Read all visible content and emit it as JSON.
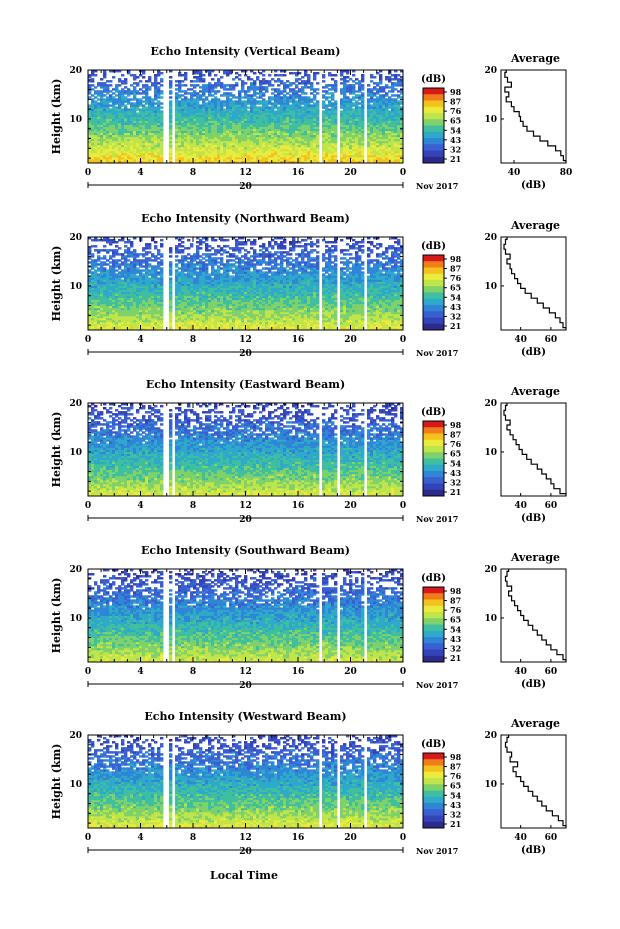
{
  "figure": {
    "xlabel": "Local Time",
    "ylabel": "Height (km)",
    "month_label": "Nov 2017",
    "date_tick": "20",
    "colorbar_unit": "(dB)",
    "colorbar_ticks": [
      "98",
      "87",
      "76",
      "65",
      "54",
      "43",
      "32",
      "21"
    ],
    "colorbar_colors": [
      "#d7191c",
      "#f07c1a",
      "#f4c21d",
      "#eaeb3d",
      "#bfe54b",
      "#7fd16b",
      "#3fbf9f",
      "#2fa9c9",
      "#2f86d6",
      "#3a5fd0",
      "#3344b8",
      "#2d2a8c"
    ]
  },
  "chart_data": [
    {
      "type": "heatmap",
      "title": "Echo Intensity (Vertical Beam)",
      "xlabel": "",
      "ylabel": "Height (km)",
      "x_ticks": [
        "0",
        "4",
        "8",
        "12",
        "16",
        "20",
        "0"
      ],
      "y_ticks": [
        "20",
        "10"
      ],
      "xlim": [
        0,
        24
      ],
      "ylim": [
        1,
        20
      ],
      "gaps_local_time": [
        [
          5.8,
          6.1
        ],
        [
          6.4,
          6.7
        ],
        [
          17.7,
          17.9
        ],
        [
          18.9,
          19.1
        ],
        [
          21.0,
          21.2
        ]
      ],
      "surface_db": 85,
      "top_db": 30,
      "average_profile": {
        "title": "Average",
        "xlabel": "(dB)",
        "x_ticks": [
          "40",
          "80"
        ],
        "y_ticks": [
          "20",
          "10"
        ],
        "xlim": [
          30,
          80
        ],
        "ylim": [
          1,
          20
        ],
        "profile": [
          [
            80,
            1
          ],
          [
            78,
            2
          ],
          [
            76,
            3
          ],
          [
            72,
            4
          ],
          [
            66,
            5
          ],
          [
            60,
            6
          ],
          [
            55,
            7
          ],
          [
            50,
            8
          ],
          [
            47,
            9
          ],
          [
            45,
            10
          ],
          [
            44,
            11
          ],
          [
            40,
            12
          ],
          [
            38,
            13
          ],
          [
            34,
            14
          ],
          [
            36,
            15
          ],
          [
            33,
            16
          ],
          [
            38,
            17
          ],
          [
            35,
            18
          ],
          [
            33,
            19
          ],
          [
            34,
            20
          ]
        ]
      }
    },
    {
      "type": "heatmap",
      "title": "Echo Intensity (Northward Beam)",
      "xlabel": "",
      "ylabel": "Height (km)",
      "x_ticks": [
        "0",
        "4",
        "8",
        "12",
        "16",
        "20",
        "0"
      ],
      "y_ticks": [
        "20",
        "10"
      ],
      "xlim": [
        0,
        24
      ],
      "ylim": [
        1,
        20
      ],
      "gaps_local_time": [
        [
          5.8,
          6.1
        ],
        [
          6.4,
          6.7
        ],
        [
          17.7,
          17.9
        ],
        [
          18.9,
          19.1
        ],
        [
          21.0,
          21.2
        ]
      ],
      "surface_db": 78,
      "top_db": 28,
      "average_profile": {
        "title": "Average",
        "xlabel": "(dB)",
        "x_ticks": [
          "40",
          "60"
        ],
        "y_ticks": [
          "20",
          "10"
        ],
        "xlim": [
          27,
          70
        ],
        "ylim": [
          1,
          20
        ],
        "profile": [
          [
            70,
            1
          ],
          [
            68,
            2
          ],
          [
            66,
            3
          ],
          [
            63,
            4
          ],
          [
            59,
            5
          ],
          [
            55,
            6
          ],
          [
            51,
            7
          ],
          [
            47,
            8
          ],
          [
            43,
            9
          ],
          [
            40,
            10
          ],
          [
            38,
            11
          ],
          [
            36,
            12
          ],
          [
            34,
            13
          ],
          [
            33,
            14
          ],
          [
            31,
            15
          ],
          [
            33,
            16
          ],
          [
            30,
            17
          ],
          [
            29,
            18
          ],
          [
            30,
            19
          ],
          [
            31,
            20
          ]
        ]
      }
    },
    {
      "type": "heatmap",
      "title": "Echo Intensity (Eastward Beam)",
      "xlabel": "",
      "ylabel": "Height (km)",
      "x_ticks": [
        "0",
        "4",
        "8",
        "12",
        "16",
        "20",
        "0"
      ],
      "y_ticks": [
        "20",
        "10"
      ],
      "xlim": [
        0,
        24
      ],
      "ylim": [
        1,
        20
      ],
      "gaps_local_time": [
        [
          5.8,
          6.1
        ],
        [
          6.4,
          6.7
        ],
        [
          17.7,
          17.9
        ],
        [
          18.9,
          19.1
        ],
        [
          21.0,
          21.2
        ]
      ],
      "surface_db": 76,
      "top_db": 27,
      "average_profile": {
        "title": "Average",
        "xlabel": "(dB)",
        "x_ticks": [
          "40",
          "60"
        ],
        "y_ticks": [
          "20",
          "10"
        ],
        "xlim": [
          27,
          70
        ],
        "ylim": [
          1,
          20
        ],
        "profile": [
          [
            70,
            1
          ],
          [
            66,
            2
          ],
          [
            62,
            3
          ],
          [
            60,
            4
          ],
          [
            57,
            5
          ],
          [
            54,
            6
          ],
          [
            51,
            7
          ],
          [
            47,
            8
          ],
          [
            44,
            9
          ],
          [
            41,
            10
          ],
          [
            39,
            11
          ],
          [
            37,
            12
          ],
          [
            35,
            13
          ],
          [
            33,
            14
          ],
          [
            31,
            15
          ],
          [
            33,
            16
          ],
          [
            30,
            17
          ],
          [
            29,
            18
          ],
          [
            30,
            19
          ],
          [
            31,
            20
          ]
        ]
      }
    },
    {
      "type": "heatmap",
      "title": "Echo Intensity (Southward Beam)",
      "xlabel": "",
      "ylabel": "Height (km)",
      "x_ticks": [
        "0",
        "4",
        "8",
        "12",
        "16",
        "20",
        "0"
      ],
      "y_ticks": [
        "20",
        "10"
      ],
      "xlim": [
        0,
        24
      ],
      "ylim": [
        1,
        20
      ],
      "gaps_local_time": [
        [
          5.8,
          6.1
        ],
        [
          6.4,
          6.7
        ],
        [
          17.7,
          17.9
        ],
        [
          18.9,
          19.1
        ],
        [
          21.0,
          21.2
        ]
      ],
      "surface_db": 75,
      "top_db": 27,
      "average_profile": {
        "title": "Average",
        "xlabel": "(dB)",
        "x_ticks": [
          "40",
          "60"
        ],
        "y_ticks": [
          "20",
          "10"
        ],
        "xlim": [
          27,
          70
        ],
        "ylim": [
          1,
          20
        ],
        "profile": [
          [
            70,
            1
          ],
          [
            68,
            2
          ],
          [
            64,
            3
          ],
          [
            60,
            4
          ],
          [
            57,
            5
          ],
          [
            54,
            6
          ],
          [
            51,
            7
          ],
          [
            48,
            8
          ],
          [
            45,
            9
          ],
          [
            42,
            10
          ],
          [
            40,
            11
          ],
          [
            38,
            12
          ],
          [
            36,
            13
          ],
          [
            34,
            14
          ],
          [
            32,
            15
          ],
          [
            34,
            16
          ],
          [
            31,
            17
          ],
          [
            30,
            18
          ],
          [
            31,
            19
          ],
          [
            32,
            20
          ]
        ]
      }
    },
    {
      "type": "heatmap",
      "title": "Echo Intensity (Westward Beam)",
      "xlabel": "Local Time",
      "ylabel": "Height (km)",
      "x_ticks": [
        "0",
        "4",
        "8",
        "12",
        "16",
        "20",
        "0"
      ],
      "y_ticks": [
        "20",
        "10"
      ],
      "xlim": [
        0,
        24
      ],
      "ylim": [
        1,
        20
      ],
      "gaps_local_time": [
        [
          5.8,
          6.1
        ],
        [
          6.4,
          6.7
        ],
        [
          17.7,
          17.9
        ],
        [
          18.9,
          19.1
        ],
        [
          21.0,
          21.2
        ]
      ],
      "surface_db": 77,
      "top_db": 28,
      "average_profile": {
        "title": "Average",
        "xlabel": "(dB)",
        "x_ticks": [
          "40",
          "60"
        ],
        "y_ticks": [
          "20",
          "10"
        ],
        "xlim": [
          27,
          70
        ],
        "ylim": [
          1,
          20
        ],
        "profile": [
          [
            70,
            1
          ],
          [
            68,
            2
          ],
          [
            65,
            3
          ],
          [
            61,
            4
          ],
          [
            57,
            5
          ],
          [
            54,
            6
          ],
          [
            51,
            7
          ],
          [
            48,
            8
          ],
          [
            45,
            9
          ],
          [
            42,
            10
          ],
          [
            40,
            11
          ],
          [
            37,
            12
          ],
          [
            35,
            13
          ],
          [
            38,
            14
          ],
          [
            33,
            15
          ],
          [
            34,
            16
          ],
          [
            31,
            17
          ],
          [
            30,
            18
          ],
          [
            31,
            19
          ],
          [
            32,
            20
          ]
        ]
      }
    }
  ]
}
